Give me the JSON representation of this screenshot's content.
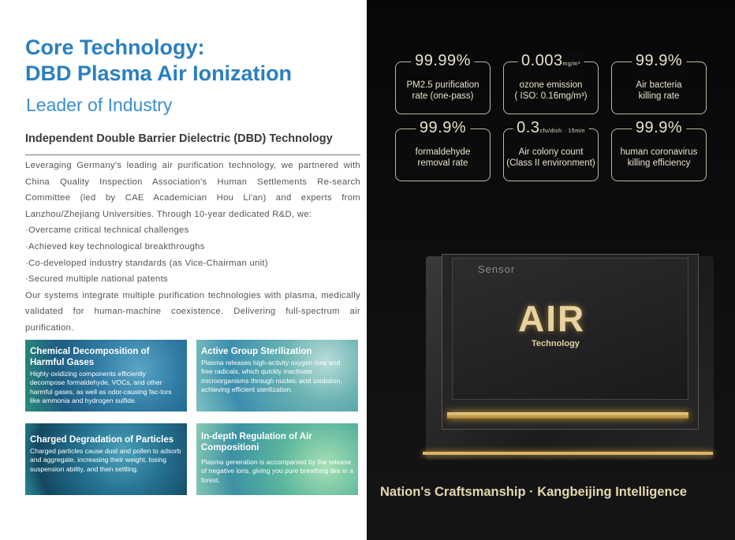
{
  "header": {
    "title_line1": "Core Technology:",
    "title_line2": "DBD Plasma Air Ionization",
    "subtitle": "Leader of Industry"
  },
  "section": {
    "heading": "Independent Double Barrier Dielectric (DBD) Technology",
    "paragraphs": [
      "Leveraging Germany's leading air purification technology, we partnered with China Quality Inspection Association's Human Settlements Re-search Committee (led by CAE Academician Hou Li'an) and experts from Lanzhou/Zhejiang Universities. Through 10-year dedicated R&D, we:",
      "·Overcame critical technical challenges",
      "·Achieved key technological breakthroughs",
      "·Co-developed industry standards (as Vice-Chairman unit)",
      "·Secured multiple national patents",
      "Our systems integrate multiple purification technologies with plasma, medically validated for human-machine coexistence. Delivering full-spectrum air purification."
    ]
  },
  "cards": [
    {
      "title": "Chemical Decomposition of Harmful Gases",
      "text": "Highly oxidizing components efficiently decompose formaldehyde, VOCs, and other harmful gases, as well as odor-causing fac-tors like ammonia and hydrogen sulfide."
    },
    {
      "title": "Active Group Sterilization",
      "text": "Plasma releases high-activity oxygen ions and free radicals, which quickly inactivate microorganisms through nucleic acid oxidation, achieving efficient sterilization."
    },
    {
      "title": "Charged Degradation of Particles",
      "text": "Charged particles cause dust and pollen to adsorb and aggregate, increasing their weight, losing suspension ability, and then settling."
    },
    {
      "title": "In-depth Regulation of Air Compositioni",
      "text": "Plasma generation is accompanied by the release of negative ions, giving you pure breathing like in a forest."
    }
  ],
  "stats": [
    {
      "value": "99.99%",
      "unit": "",
      "label1": "PM2.5 purification",
      "label2": "rate (one-pass)"
    },
    {
      "value": "0.003",
      "unit": "mg/m³",
      "label1": "ozone emission",
      "label2": "( ISO: 0.16mg/m³)"
    },
    {
      "value": "99.9%",
      "unit": "",
      "label1": "Air bacteria",
      "label2": "killing rate"
    },
    {
      "value": "99.9%",
      "unit": "",
      "label1": "formaldehyde",
      "label2": "removal rate"
    },
    {
      "value": "0.3",
      "unit": "cfu/dish · 15min",
      "label1": "Air colony count",
      "label2": "(Class II environment)"
    },
    {
      "value": "99.9%",
      "unit": "",
      "label1": "human coronavirus",
      "label2": "killing efficiency"
    }
  ],
  "chip": {
    "sensor": "Sensor",
    "air": "AIR",
    "technology": "Technology"
  },
  "slogan": "Nation's Craftsmanship · Kangbeijing Intelligence",
  "colors": {
    "title_blue": "#2a7fc1",
    "gold": "#e6d7b0",
    "dark_bg": "#0a0a0a"
  }
}
